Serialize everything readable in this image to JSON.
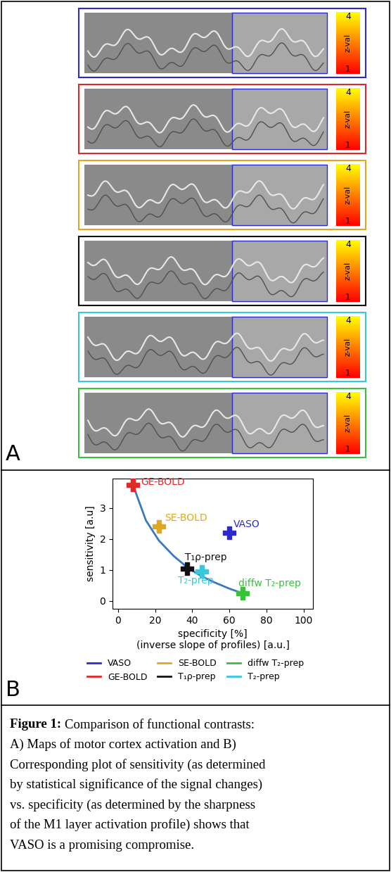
{
  "panel_labels": [
    "A",
    "B"
  ],
  "panel_a": {
    "colors": [
      "#2a2ad0",
      "#e02a2a",
      "#e0a81c",
      "#111111",
      "#38c8dc",
      "#3cbf3c"
    ],
    "colorbar": {
      "label": "z-val",
      "zlim": [
        1,
        4
      ],
      "zticks": [
        1,
        4
      ]
    }
  },
  "chart_data": {
    "type": "scatter",
    "x_label": "specificity [%]\n(inverse slope of profiles) [a.u.]",
    "y_label": "sensitivity [a.u]",
    "xlim": [
      -3,
      105
    ],
    "xticks": [
      0,
      20,
      40,
      60,
      80,
      100
    ],
    "ylim": [
      -0.25,
      3.95
    ],
    "yticks": [
      0,
      1,
      2,
      3
    ],
    "marker": "plus",
    "legend": "upper center",
    "series": [
      {
        "name": "VASO",
        "color": "#2a2ad0",
        "x": [
          60
        ],
        "values": [
          2.2
        ]
      },
      {
        "name": "GE-BOLD",
        "color": "#e02a2a",
        "x": [
          8
        ],
        "values": [
          3.75
        ]
      },
      {
        "name": "SE-BOLD",
        "color": "#e0a81c",
        "x": [
          22
        ],
        "values": [
          2.4
        ]
      },
      {
        "name": "T₁ρ-prep",
        "color": "#111111",
        "x": [
          37
        ],
        "values": [
          1.05
        ]
      },
      {
        "name": "diffw T₂-prep",
        "color": "#3cbf3c",
        "x": [
          67
        ],
        "values": [
          0.25
        ]
      },
      {
        "name": "T₂-prep",
        "color": "#38c8dc",
        "x": [
          45
        ],
        "values": [
          0.95
        ]
      }
    ],
    "curve": {
      "color": "#3a78c0",
      "x": [
        8,
        15,
        22,
        30,
        38,
        45,
        52,
        60,
        67
      ],
      "values": [
        3.75,
        2.6,
        1.95,
        1.45,
        1.05,
        0.8,
        0.6,
        0.4,
        0.25
      ]
    }
  },
  "caption": {
    "label": "Figure 1:",
    "lines": [
      "Comparison of functional contrasts:",
      "A) Maps of motor cortex activation and B)",
      "Corresponding plot of sensitivity (as determined",
      "by statistical significance of the signal changes)",
      "vs. specificity (as determined by the sharpness",
      "of the M1 layer activation profile) shows that",
      "VASO is a promising compromise."
    ]
  }
}
